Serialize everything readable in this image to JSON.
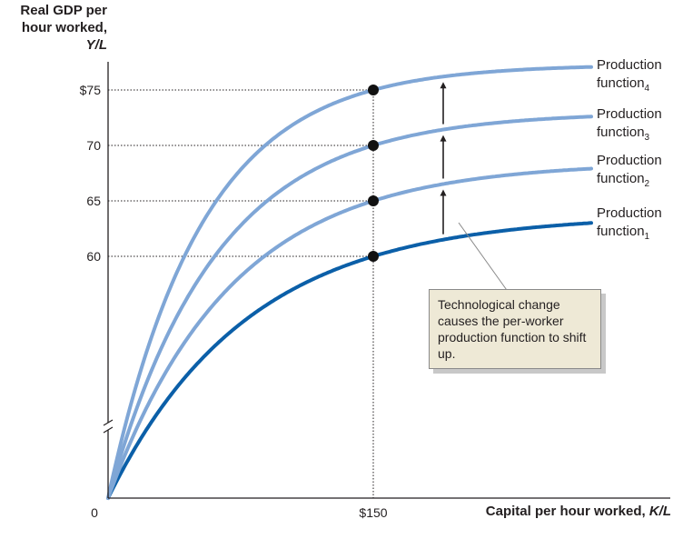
{
  "chart_data": {
    "type": "line",
    "y_axis_label": "Real GDP per hour worked,",
    "y_axis_symbol": "Y/L",
    "x_axis_label": "Capital per hour worked,",
    "x_axis_symbol": "K/L",
    "origin_label": "0",
    "x_tick": {
      "value": 150,
      "label": "$150"
    },
    "y_ticks": [
      {
        "value": 75,
        "label": "$75"
      },
      {
        "value": 70,
        "label": "70"
      },
      {
        "value": 65,
        "label": "65"
      },
      {
        "value": 60,
        "label": "60"
      }
    ],
    "series": [
      {
        "name": "Production function",
        "subscript": "1",
        "value_at_150": 60,
        "plateau": 63.8,
        "color": "#0b5fa8"
      },
      {
        "name": "Production function",
        "subscript": "2",
        "value_at_150": 65,
        "plateau": 68.5,
        "color": "#7fa6d6"
      },
      {
        "name": "Production function",
        "subscript": "3",
        "value_at_150": 70,
        "plateau": 73.0,
        "color": "#7fa6d6"
      },
      {
        "name": "Production function",
        "subscript": "4",
        "value_at_150": 75,
        "plateau": 77.3,
        "color": "#7fa6d6"
      }
    ],
    "annotation": "Technological change causes the per-worker production function to shift up.",
    "axis_break": true,
    "grid": false
  }
}
